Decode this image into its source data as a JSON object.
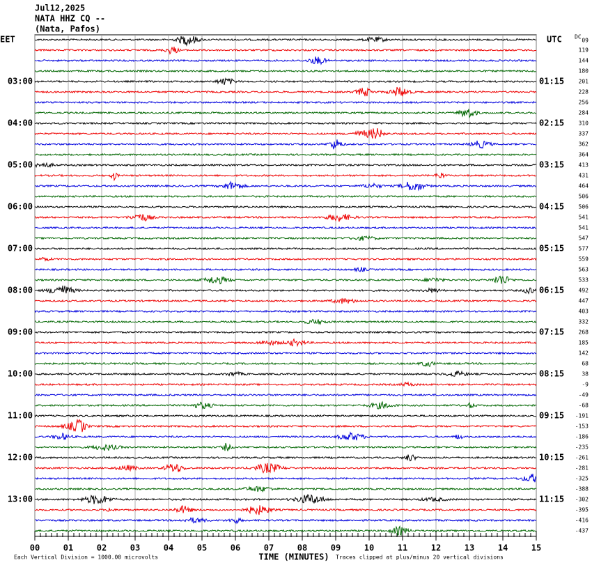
{
  "header": {
    "lines": [
      "Jul12,2025",
      "NATA HHZ CQ --",
      "(Nata, Pafos)"
    ]
  },
  "left_axis": {
    "title": "EET",
    "labels": [
      "03:00",
      "04:00",
      "05:00",
      "06:00",
      "07:00",
      "08:00",
      "09:00",
      "10:00",
      "11:00",
      "12:00",
      "13:00"
    ]
  },
  "right_axis": {
    "title": "UTC",
    "labels": [
      "01:15",
      "02:15",
      "03:15",
      "04:15",
      "05:15",
      "06:15",
      "07:15",
      "08:15",
      "09:15",
      "10:15",
      "11:15"
    ]
  },
  "dc": {
    "title": "DC",
    "values": [
      "09",
      "119",
      "144",
      "180",
      "201",
      "228",
      "256",
      "284",
      "310",
      "337",
      "362",
      "364",
      "413",
      "431",
      "464",
      "506",
      "506",
      "541",
      "541",
      "547",
      "577",
      "559",
      "563",
      "533",
      "492",
      "447",
      "403",
      "332",
      "268",
      "185",
      "142",
      "68",
      "38",
      "-9",
      "-49",
      "-68",
      "-191",
      "-153",
      "-186",
      "-235",
      "-261",
      "-281",
      "-325",
      "-388",
      "-302",
      "-395",
      "-416",
      "-437"
    ]
  },
  "x_axis": {
    "title": "TIME (MINUTES)",
    "ticks": [
      "00",
      "01",
      "02",
      "03",
      "04",
      "05",
      "06",
      "07",
      "08",
      "09",
      "10",
      "11",
      "12",
      "13",
      "14",
      "15"
    ]
  },
  "footer": {
    "scale_note": "Each Vertical Division = 1000.00 microvolts",
    "clip_note": "Traces clipped at plus/minus 20 vertical divisions"
  }
}
